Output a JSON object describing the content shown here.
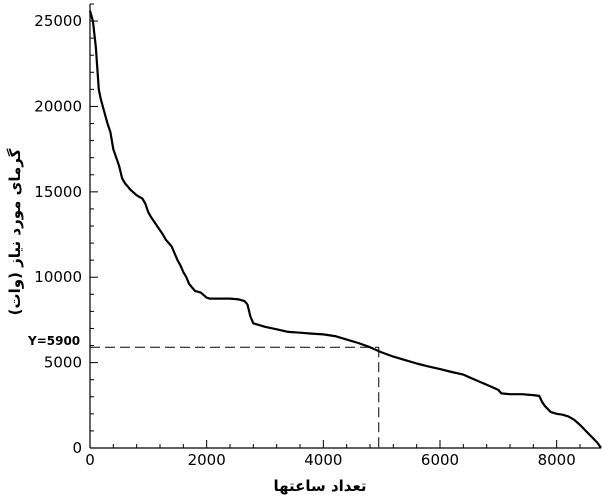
{
  "chart_data": {
    "type": "line",
    "xlabel": "تعداد ساعتها",
    "ylabel": "گرمای مورد نیاز (وات)",
    "xlim": [
      0,
      8760
    ],
    "ylim": [
      0,
      26000
    ],
    "xticks": [
      0,
      2000,
      4000,
      6000,
      8000
    ],
    "yticks": [
      0,
      5000,
      10000,
      15000,
      20000,
      25000
    ],
    "xtick_labels": [
      "0",
      "2000",
      "4000",
      "6000",
      "8000"
    ],
    "ytick_labels": [
      "0",
      "5000",
      "10000",
      "15000",
      "20000",
      "25000"
    ],
    "grid": false,
    "annotation": {
      "label": "Y=5900",
      "y": 5900,
      "x": 4950
    },
    "series": [
      {
        "x": [
          0,
          50,
          100,
          150,
          180,
          220,
          300,
          350,
          400,
          500,
          550,
          600,
          700,
          800,
          900,
          950,
          1000,
          1050,
          1150,
          1250,
          1300,
          1400,
          1500,
          1550,
          1600,
          1650,
          1700,
          1750,
          1800,
          1900,
          2000,
          2050,
          2100,
          2200,
          2400,
          2550,
          2650,
          2700,
          2750,
          2800,
          3000,
          3200,
          3400,
          3600,
          3800,
          4000,
          4200,
          4400,
          4600,
          4800,
          5000,
          5200,
          5400,
          5600,
          5800,
          6000,
          6200,
          6400,
          6600,
          6800,
          7000,
          7050,
          7200,
          7400,
          7600,
          7700,
          7750,
          7800,
          7900,
          8000,
          8100,
          8200,
          8300,
          8400,
          8500,
          8600,
          8700,
          8760
        ],
        "y": [
          25600,
          25000,
          23500,
          21000,
          20500,
          20000,
          19000,
          18500,
          17500,
          16500,
          15800,
          15500,
          15100,
          14800,
          14600,
          14300,
          13800,
          13500,
          13000,
          12500,
          12200,
          11800,
          11000,
          10700,
          10300,
          10000,
          9600,
          9400,
          9200,
          9100,
          8800,
          8750,
          8750,
          8750,
          8750,
          8700,
          8600,
          8400,
          7700,
          7300,
          7100,
          6950,
          6800,
          6750,
          6700,
          6650,
          6550,
          6350,
          6150,
          5900,
          5600,
          5350,
          5150,
          4950,
          4780,
          4620,
          4450,
          4300,
          4000,
          3700,
          3400,
          3200,
          3150,
          3150,
          3100,
          3050,
          2700,
          2450,
          2100,
          2000,
          1950,
          1850,
          1650,
          1350,
          1000,
          650,
          300,
          0
        ]
      }
    ]
  }
}
